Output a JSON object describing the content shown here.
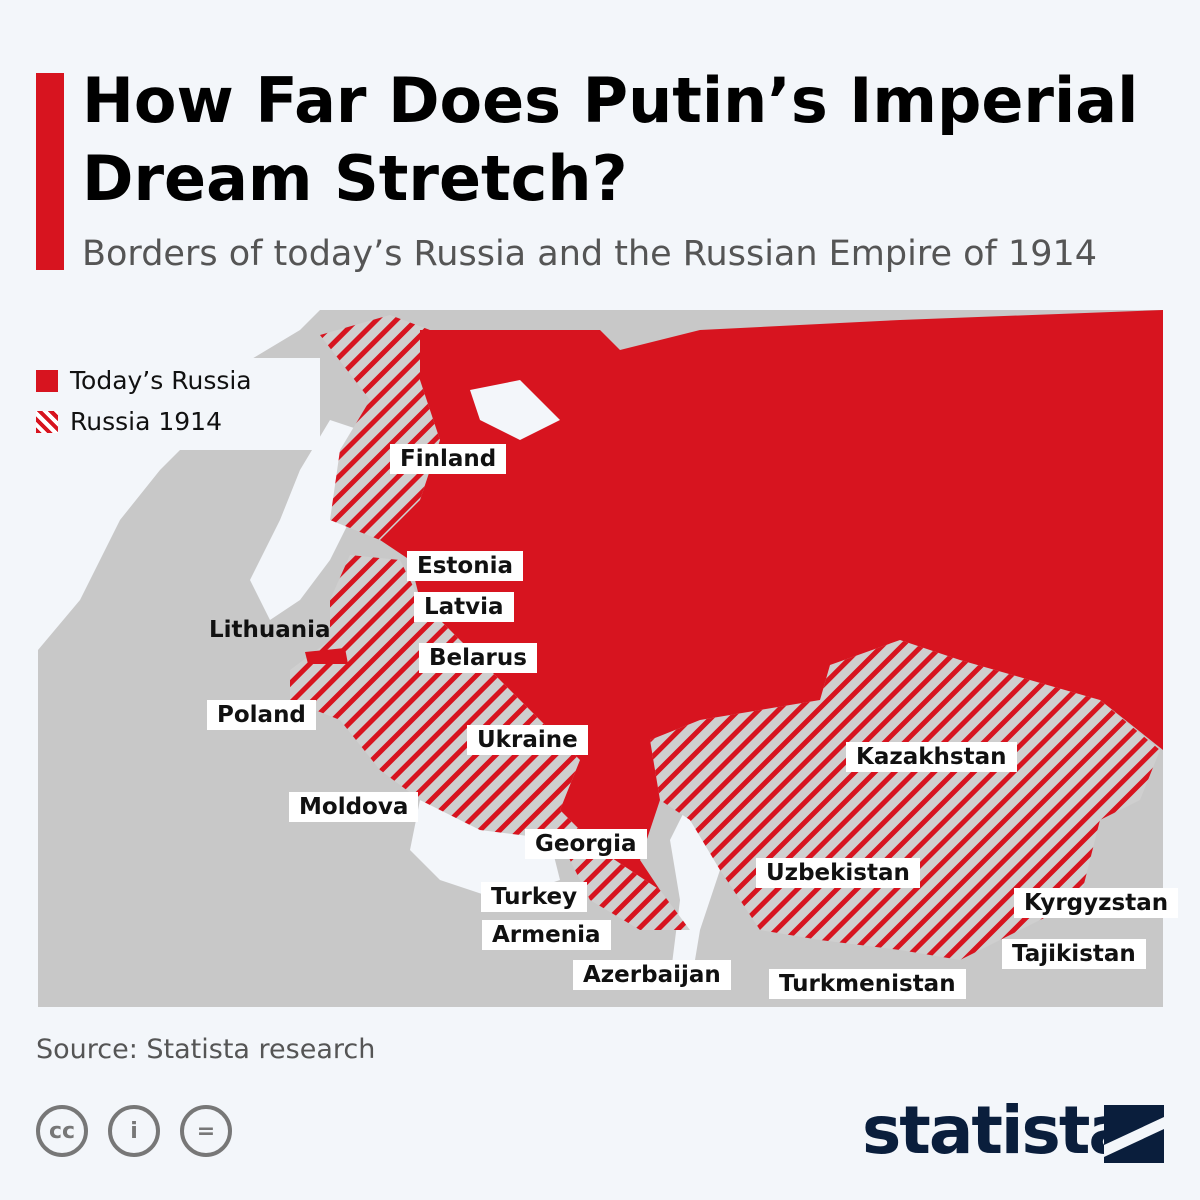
{
  "title": "How Far Does Putin’s Imperial Dream Stretch?",
  "subtitle": "Borders of today’s Russia and the Russian Empire of 1914",
  "legend": [
    {
      "label": "Today’s Russia",
      "style": "solid",
      "color": "#d7141f"
    },
    {
      "label": "Russia 1914",
      "style": "hatched",
      "color": "#d7141f"
    }
  ],
  "labels": {
    "finland": "Finland",
    "estonia": "Estonia",
    "latvia": "Latvia",
    "lithuania": "Lithuania",
    "belarus": "Belarus",
    "poland": "Poland",
    "ukraine": "Ukraine",
    "moldova": "Moldova",
    "georgia": "Georgia",
    "turkey": "Turkey",
    "armenia": "Armenia",
    "azerbaijan": "Azerbaijan",
    "kazakhstan": "Kazakhstan",
    "uzbekistan": "Uzbekistan",
    "kyrgyzstan": "Kyrgyzstan",
    "tajikistan": "Tajikistan",
    "turkmenistan": "Turkmenistan"
  },
  "source": "Source: Statista research",
  "license_icons": [
    "cc-icon",
    "attribution-icon",
    "no-derivatives-icon"
  ],
  "brand": "statista",
  "colors": {
    "russia": "#d7141f",
    "land": "#c8c8c8",
    "water": "#f3f6fa"
  }
}
